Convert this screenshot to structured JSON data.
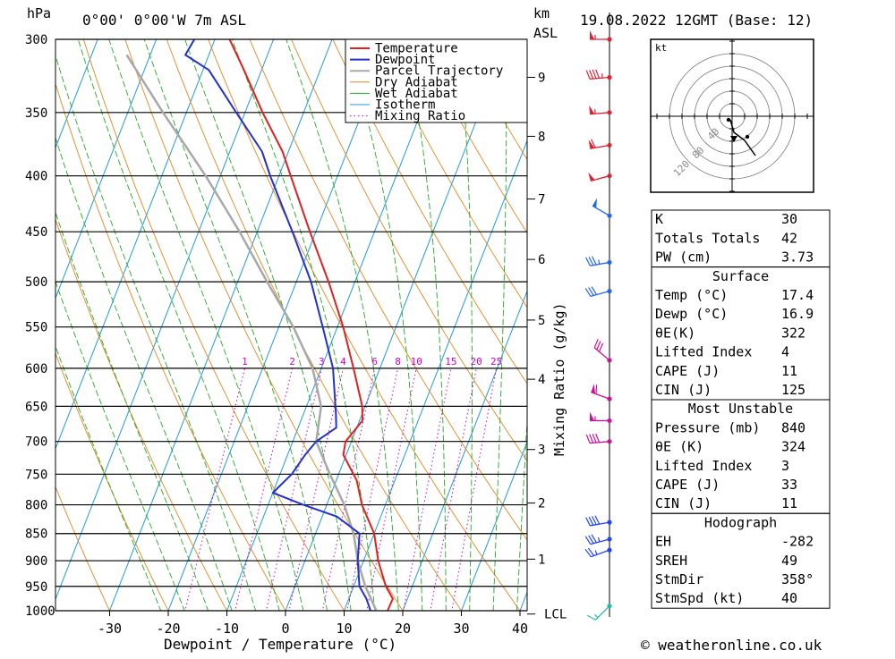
{
  "header": {
    "left_unit": "hPa",
    "location": "0°00' 0°00'W  7m  ASL",
    "km_unit": "km",
    "asl_unit": "ASL",
    "datetime": "19.08.2022  12GMT  (Base: 12)"
  },
  "footer": {
    "copyright": "© weatheronline.co.uk"
  },
  "colors": {
    "temperature": "#dd2222",
    "dewpoint": "#2233cc",
    "parcel": "#a8a8a8",
    "dry_adiabat": "#dd8822",
    "wet_adiabat": "#22aa22",
    "isotherm": "#2299dd",
    "mixing_ratio": "#cc00cc"
  },
  "chart_data": {
    "type": "skew-t",
    "xlabel": "Dewpoint / Temperature (°C)",
    "ylabel_right": "Mixing Ratio (g/kg)",
    "pressure_levels": [
      300,
      350,
      400,
      450,
      500,
      550,
      600,
      650,
      700,
      750,
      800,
      850,
      900,
      950,
      1000
    ],
    "temperature_ticks": [
      -30,
      -20,
      -10,
      0,
      10,
      20,
      30,
      40
    ],
    "height_km_ticks": [
      {
        "label": "9",
        "p": 325
      },
      {
        "label": "8",
        "p": 368
      },
      {
        "label": "7",
        "p": 420
      },
      {
        "label": "6",
        "p": 477
      },
      {
        "label": "5",
        "p": 542
      },
      {
        "label": "4",
        "p": 614
      },
      {
        "label": "3",
        "p": 712
      },
      {
        "label": "2",
        "p": 797
      },
      {
        "label": "1",
        "p": 897
      },
      {
        "label": "LCL",
        "p": 1007
      }
    ],
    "mixing_ratio_labels": [
      "1",
      "2",
      "3",
      "4",
      "6",
      "8",
      "10",
      "15",
      "20",
      "25"
    ],
    "mixing_ratio_values": [
      1,
      2,
      3,
      4,
      6,
      8,
      10,
      15,
      20,
      25
    ],
    "legend": [
      "Temperature",
      "Dewpoint",
      "Parcel Trajectory",
      "Dry Adiabat",
      "Wet Adiabat",
      "Isotherm",
      "Mixing Ratio"
    ],
    "temperature": [
      [
        1012,
        16.5
      ],
      [
        1000,
        17.4
      ],
      [
        975,
        17.5
      ],
      [
        950,
        15.5
      ],
      [
        900,
        12.5
      ],
      [
        850,
        10.0
      ],
      [
        800,
        6.0
      ],
      [
        760,
        3.5
      ],
      [
        720,
        -0.5
      ],
      [
        700,
        -1.0
      ],
      [
        670,
        0.5
      ],
      [
        650,
        -0.5
      ],
      [
        600,
        -4.5
      ],
      [
        550,
        -9.0
      ],
      [
        500,
        -14.5
      ],
      [
        450,
        -21.0
      ],
      [
        400,
        -28.0
      ],
      [
        380,
        -31.0
      ],
      [
        350,
        -37.0
      ],
      [
        320,
        -43.0
      ],
      [
        300,
        -47.5
      ]
    ],
    "dewpoint": [
      [
        1012,
        15.5
      ],
      [
        1000,
        14.5
      ],
      [
        975,
        13.0
      ],
      [
        950,
        11.0
      ],
      [
        900,
        9.0
      ],
      [
        850,
        7.5
      ],
      [
        820,
        2.5
      ],
      [
        800,
        -4.0
      ],
      [
        780,
        -10.0
      ],
      [
        750,
        -8.0
      ],
      [
        720,
        -7.0
      ],
      [
        700,
        -6.0
      ],
      [
        680,
        -3.5
      ],
      [
        660,
        -4.5
      ],
      [
        600,
        -8.0
      ],
      [
        550,
        -12.5
      ],
      [
        500,
        -17.5
      ],
      [
        450,
        -24.0
      ],
      [
        400,
        -31.5
      ],
      [
        380,
        -34.5
      ],
      [
        350,
        -41.5
      ],
      [
        320,
        -49.0
      ],
      [
        310,
        -54.0
      ],
      [
        300,
        -53.5
      ]
    ],
    "parcel": [
      [
        1012,
        16.0
      ],
      [
        1000,
        15.5
      ],
      [
        950,
        12.0
      ],
      [
        900,
        9.0
      ],
      [
        850,
        6.5
      ],
      [
        800,
        3.0
      ],
      [
        750,
        -1.5
      ],
      [
        700,
        -6.0
      ],
      [
        650,
        -7.5
      ],
      [
        600,
        -11.5
      ],
      [
        550,
        -17.5
      ],
      [
        500,
        -25.0
      ],
      [
        450,
        -33.0
      ],
      [
        400,
        -42.5
      ],
      [
        350,
        -54.0
      ],
      [
        310,
        -64.0
      ]
    ]
  },
  "wind_profile": {
    "barbs": [
      {
        "p": 300,
        "dir": 270,
        "kt": 55
      },
      {
        "p": 325,
        "dir": 265,
        "kt": 45
      },
      {
        "p": 350,
        "dir": 265,
        "kt": 55
      },
      {
        "p": 375,
        "dir": 260,
        "kt": 60
      },
      {
        "p": 400,
        "dir": 255,
        "kt": 50
      },
      {
        "p": 435,
        "dir": 300,
        "kt": 50
      },
      {
        "p": 480,
        "dir": 260,
        "kt": 35
      },
      {
        "p": 510,
        "dir": 255,
        "kt": 30
      },
      {
        "p": 590,
        "dir": 310,
        "kt": 30
      },
      {
        "p": 640,
        "dir": 290,
        "kt": 60
      },
      {
        "p": 670,
        "dir": 270,
        "kt": 55
      },
      {
        "p": 700,
        "dir": 265,
        "kt": 40
      },
      {
        "p": 830,
        "dir": 260,
        "kt": 40
      },
      {
        "p": 860,
        "dir": 255,
        "kt": 35
      },
      {
        "p": 880,
        "dir": 250,
        "kt": 25
      },
      {
        "p": 990,
        "dir": 225,
        "kt": 15
      }
    ]
  },
  "hodograph": {
    "unit": "kt",
    "ring_labels": [
      "40",
      "80",
      "120"
    ]
  },
  "indices": {
    "general": [
      {
        "label": "K",
        "value": "30"
      },
      {
        "label": "Totals Totals",
        "value": "42"
      },
      {
        "label": "PW (cm)",
        "value": "3.73"
      }
    ],
    "surface": {
      "title": "Surface",
      "rows": [
        {
          "label": "Temp (°C)",
          "value": "17.4"
        },
        {
          "label": "Dewp (°C)",
          "value": "16.9"
        },
        {
          "label": "θE(K)",
          "value": "322"
        },
        {
          "label": "Lifted Index",
          "value": "4"
        },
        {
          "label": "CAPE (J)",
          "value": "11"
        },
        {
          "label": "CIN (J)",
          "value": "125"
        }
      ]
    },
    "most_unstable": {
      "title": "Most Unstable",
      "rows": [
        {
          "label": "Pressure (mb)",
          "value": "840"
        },
        {
          "label": "θE (K)",
          "value": "324"
        },
        {
          "label": "Lifted Index",
          "value": "3"
        },
        {
          "label": "CAPE (J)",
          "value": "33"
        },
        {
          "label": "CIN (J)",
          "value": "11"
        }
      ]
    },
    "hodograph": {
      "title": "Hodograph",
      "rows": [
        {
          "label": "EH",
          "value": "-282"
        },
        {
          "label": "SREH",
          "value": "49"
        },
        {
          "label": "StmDir",
          "value": "358°"
        },
        {
          "label": "StmSpd (kt)",
          "value": "40"
        }
      ]
    }
  }
}
